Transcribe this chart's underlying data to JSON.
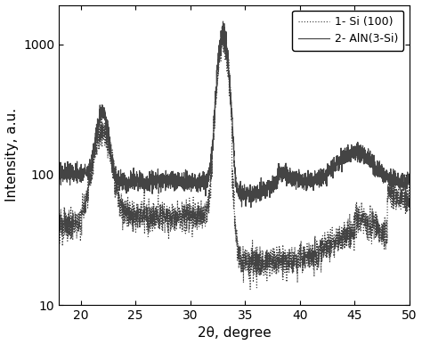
{
  "xlabel": "2θ, degree",
  "ylabel": "Intensity, a.u.",
  "xlim": [
    18,
    50
  ],
  "ylim": [
    10,
    2000
  ],
  "yticks": [
    10,
    100,
    1000
  ],
  "xticks": [
    20,
    25,
    30,
    35,
    40,
    45,
    50
  ],
  "legend_labels": [
    "1- Si (100)",
    "2- AlN(3-Si)"
  ],
  "line_color": "#444444",
  "background_color": "#ffffff",
  "figsize": [
    4.74,
    3.87
  ],
  "dpi": 100
}
